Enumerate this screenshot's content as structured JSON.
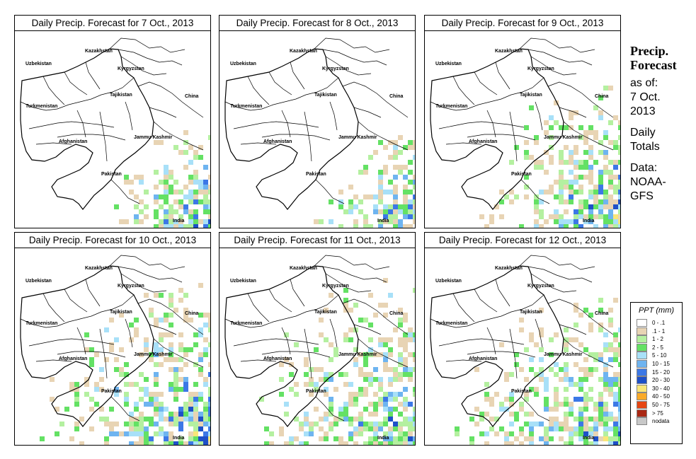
{
  "panels": [
    {
      "title": "Daily Precip. Forecast for  7 Oct., 2013",
      "coverage": 0.1
    },
    {
      "title": "Daily Precip. Forecast for  8 Oct., 2013",
      "coverage": 0.08
    },
    {
      "title": "Daily Precip. Forecast for  9 Oct., 2013",
      "coverage": 0.28
    },
    {
      "title": "Daily Precip. Forecast for  10 Oct., 2013",
      "coverage": 0.4
    },
    {
      "title": "Daily Precip. Forecast for  11 Oct., 2013",
      "coverage": 0.38
    },
    {
      "title": "Daily Precip. Forecast for  12 Oct., 2013",
      "coverage": 0.35
    }
  ],
  "place_labels": [
    "Kazakhstan",
    "Uzbekistan",
    "Kyrgyzstan",
    "Tajikistan",
    "China",
    "Turkmenistan",
    "Jammu Kashmir",
    "Afghanistan",
    "Pakistan",
    "India"
  ],
  "sidebar": {
    "title_line1": "Precip.",
    "title_line2": "Forecast",
    "asof_line1": "as of:",
    "asof_line2": "7 Oct.",
    "asof_line3": "2013",
    "totals_line1": "Daily",
    "totals_line2": "Totals",
    "data_line1": "Data:",
    "data_line2": "NOAA-",
    "data_line3": "GFS"
  },
  "legend": {
    "title": "PPT (mm)",
    "items": [
      {
        "label": "0 - .1",
        "color": "#ffffff"
      },
      {
        "label": ".1 - 1",
        "color": "#e8d4b4"
      },
      {
        "label": "1 - 2",
        "color": "#b4f0a0"
      },
      {
        "label": "2 - 5",
        "color": "#64e164"
      },
      {
        "label": "5 - 10",
        "color": "#a8e0f8"
      },
      {
        "label": "10 - 15",
        "color": "#6eb4f0"
      },
      {
        "label": "15 - 20",
        "color": "#3c78e6"
      },
      {
        "label": "20 - 30",
        "color": "#1e50c8"
      },
      {
        "label": "30 - 40",
        "color": "#fae678"
      },
      {
        "label": "40 - 50",
        "color": "#faaa28"
      },
      {
        "label": "50 - 75",
        "color": "#e64614"
      },
      {
        "label": "> 75",
        "color": "#aa2814"
      },
      {
        "label": "nodata",
        "color": "#c8c8c8"
      }
    ]
  }
}
